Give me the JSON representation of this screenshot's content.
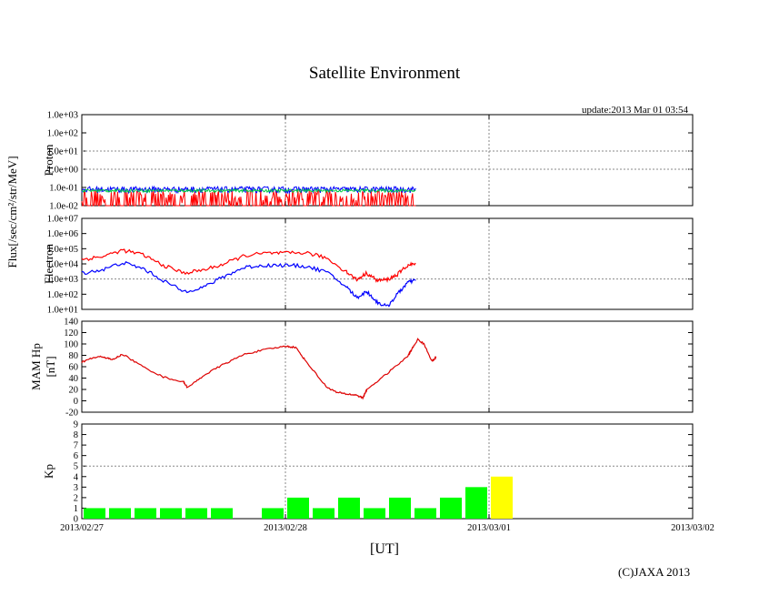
{
  "page": {
    "title": "Satellite Environment",
    "update": "update:2013 Mar 01 03:54",
    "copyright": "(C)JAXA 2013",
    "x_axis_title": "[UT]",
    "flux_label": "Flux[/sec/cm²/str/MeV]"
  },
  "chart_data": [
    {
      "id": "proton",
      "type": "line",
      "ylabel": "Proton",
      "yscale": "log",
      "ylim": [
        0.01,
        1000
      ],
      "yticks": [
        "1.0e-02",
        "1.0e-01",
        "1.0e+00",
        "1.0e+01",
        "1.0e+02",
        "1.0e+03"
      ],
      "series": [
        {
          "name": "red",
          "color": "#ff0000",
          "baseline": 0.012,
          "peak": 0.07
        },
        {
          "name": "blue",
          "color": "#0000ff",
          "baseline": 0.05,
          "peak": 0.11
        },
        {
          "name": "green",
          "color": "#00cc44",
          "baseline": 0.055,
          "peak": 0.08
        }
      ],
      "x_range_days": [
        0,
        1.64
      ]
    },
    {
      "id": "electron",
      "type": "line",
      "ylabel": "Electron",
      "yscale": "log",
      "ylim": [
        10,
        10000000
      ],
      "yticks": [
        "1.0e+01",
        "1.0e+02",
        "1.0e+03",
        "1.0e+04",
        "1.0e+05",
        "1.0e+06",
        "1.0e+07"
      ],
      "series": [
        {
          "name": "red",
          "color": "#ff0000",
          "x": [
            0,
            0.1,
            0.2,
            0.3,
            0.4,
            0.5,
            0.6,
            0.7,
            0.8,
            0.9,
            1.0,
            1.1,
            1.2,
            1.3,
            1.35,
            1.4,
            1.45,
            1.5,
            1.55,
            1.6,
            1.64
          ],
          "y": [
            20000,
            30000,
            80000,
            40000,
            8000,
            2500,
            4000,
            10000,
            35000,
            50000,
            50000,
            55000,
            25000,
            3000,
            900,
            2500,
            800,
            900,
            2000,
            8000,
            10000
          ]
        },
        {
          "name": "blue",
          "color": "#0000ff",
          "x": [
            0,
            0.1,
            0.2,
            0.3,
            0.4,
            0.5,
            0.6,
            0.7,
            0.8,
            0.9,
            1.0,
            1.1,
            1.2,
            1.3,
            1.35,
            1.4,
            1.45,
            1.5,
            1.55,
            1.6,
            1.64
          ],
          "y": [
            2500,
            4000,
            12000,
            5000,
            800,
            150,
            300,
            1500,
            6000,
            8000,
            8000,
            7000,
            3000,
            300,
            60,
            150,
            30,
            15,
            100,
            600,
            800
          ]
        }
      ]
    },
    {
      "id": "hp",
      "type": "line",
      "ylabel": "MAM Hp",
      "ylabel2": "[nT]",
      "ylim": [
        -20,
        140
      ],
      "yticks": [
        "-20",
        "0",
        "20",
        "40",
        "60",
        "80",
        "100",
        "120",
        "140"
      ],
      "series": [
        {
          "name": "Hp",
          "color": "#dd0000",
          "x": [
            0,
            0.05,
            0.1,
            0.15,
            0.2,
            0.3,
            0.4,
            0.5,
            0.52,
            0.6,
            0.7,
            0.8,
            0.9,
            1.0,
            1.05,
            1.1,
            1.2,
            1.25,
            1.3,
            1.35,
            1.38,
            1.4,
            1.5,
            1.6,
            1.62,
            1.65,
            1.68,
            1.72,
            1.74
          ],
          "y": [
            68,
            75,
            78,
            72,
            82,
            60,
            42,
            33,
            23,
            45,
            65,
            82,
            90,
            96,
            94,
            70,
            25,
            15,
            12,
            10,
            5,
            20,
            48,
            78,
            90,
            108,
            100,
            70,
            76
          ]
        }
      ]
    },
    {
      "id": "kp",
      "type": "bar",
      "ylabel": "Kp",
      "ylim": [
        0,
        9
      ],
      "yticks": [
        "0",
        "1",
        "2",
        "3",
        "4",
        "5",
        "6",
        "7",
        "8",
        "9"
      ],
      "bar_width_hours": 3,
      "values": [
        1,
        1,
        1,
        1,
        1,
        1,
        null,
        1,
        2,
        1,
        2,
        1,
        2,
        1,
        2,
        3,
        4
      ],
      "colors": [
        "#00ff00",
        "#00ff00",
        "#00ff00",
        "#00ff00",
        "#00ff00",
        "#00ff00",
        "#00ff00",
        "#00ff00",
        "#00ff00",
        "#00ff00",
        "#00ff00",
        "#00ff00",
        "#00ff00",
        "#00ff00",
        "#00ff00",
        "#00ff00",
        "#ffff00"
      ],
      "xticks": [
        "2013/02/27",
        "2013/02/28",
        "2013/03/01",
        "2013/03/02"
      ]
    }
  ]
}
